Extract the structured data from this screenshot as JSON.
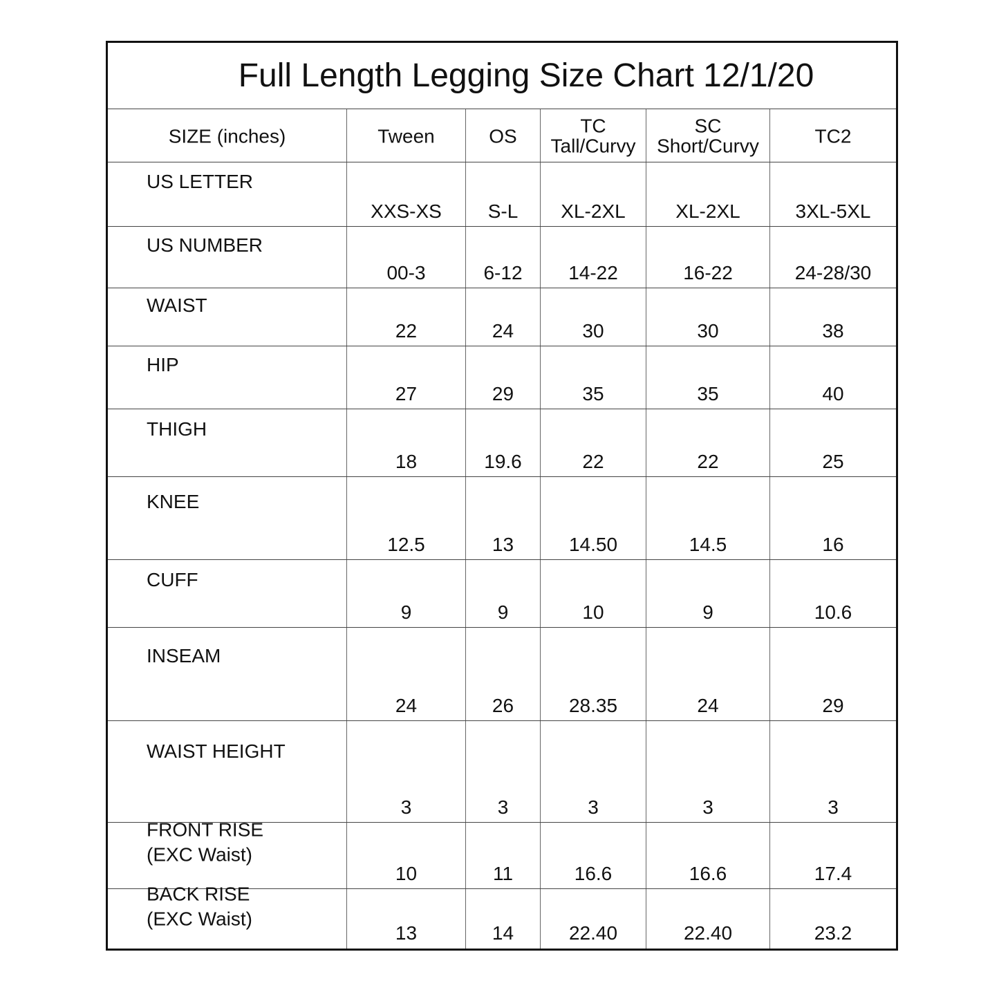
{
  "title": "Full Length Legging Size Chart 12/1/20",
  "header": [
    "SIZE (inches)",
    "Tween",
    "OS",
    "TC\nTall/Curvy",
    "SC\nShort/Curvy",
    "TC2"
  ],
  "rows": [
    {
      "label": "US LETTER",
      "values": [
        "XXS-XS",
        "S-L",
        "XL-2XL",
        "XL-2XL",
        "3XL-5XL"
      ]
    },
    {
      "label": "US NUMBER",
      "values": [
        "00-3",
        "6-12",
        "14-22",
        "16-22",
        "24-28/30"
      ]
    },
    {
      "label": "WAIST",
      "values": [
        "22",
        "24",
        "30",
        "30",
        "38"
      ]
    },
    {
      "label": "HIP",
      "values": [
        "27",
        "29",
        "35",
        "35",
        "40"
      ]
    },
    {
      "label": "THIGH",
      "values": [
        "18",
        "19.6",
        "22",
        "22",
        "25"
      ]
    },
    {
      "label": "KNEE",
      "values": [
        "12.5",
        "13",
        "14.50",
        "14.5",
        "16"
      ]
    },
    {
      "label": "CUFF",
      "values": [
        "9",
        "9",
        "10",
        "9",
        "10.6"
      ]
    },
    {
      "label": "INSEAM",
      "values": [
        "24",
        "26",
        "28.35",
        "24",
        "29"
      ]
    },
    {
      "label": "WAIST HEIGHT",
      "values": [
        "3",
        "3",
        "3",
        "3",
        "3"
      ]
    },
    {
      "label": "FRONT RISE\n(EXC Waist)",
      "values": [
        "10",
        "11",
        "16.6",
        "16.6",
        "17.4"
      ]
    },
    {
      "label": "BACK RISE\n(EXC Waist)",
      "values": [
        "13",
        "14",
        "22.40",
        "22.40",
        "23.2"
      ]
    }
  ]
}
